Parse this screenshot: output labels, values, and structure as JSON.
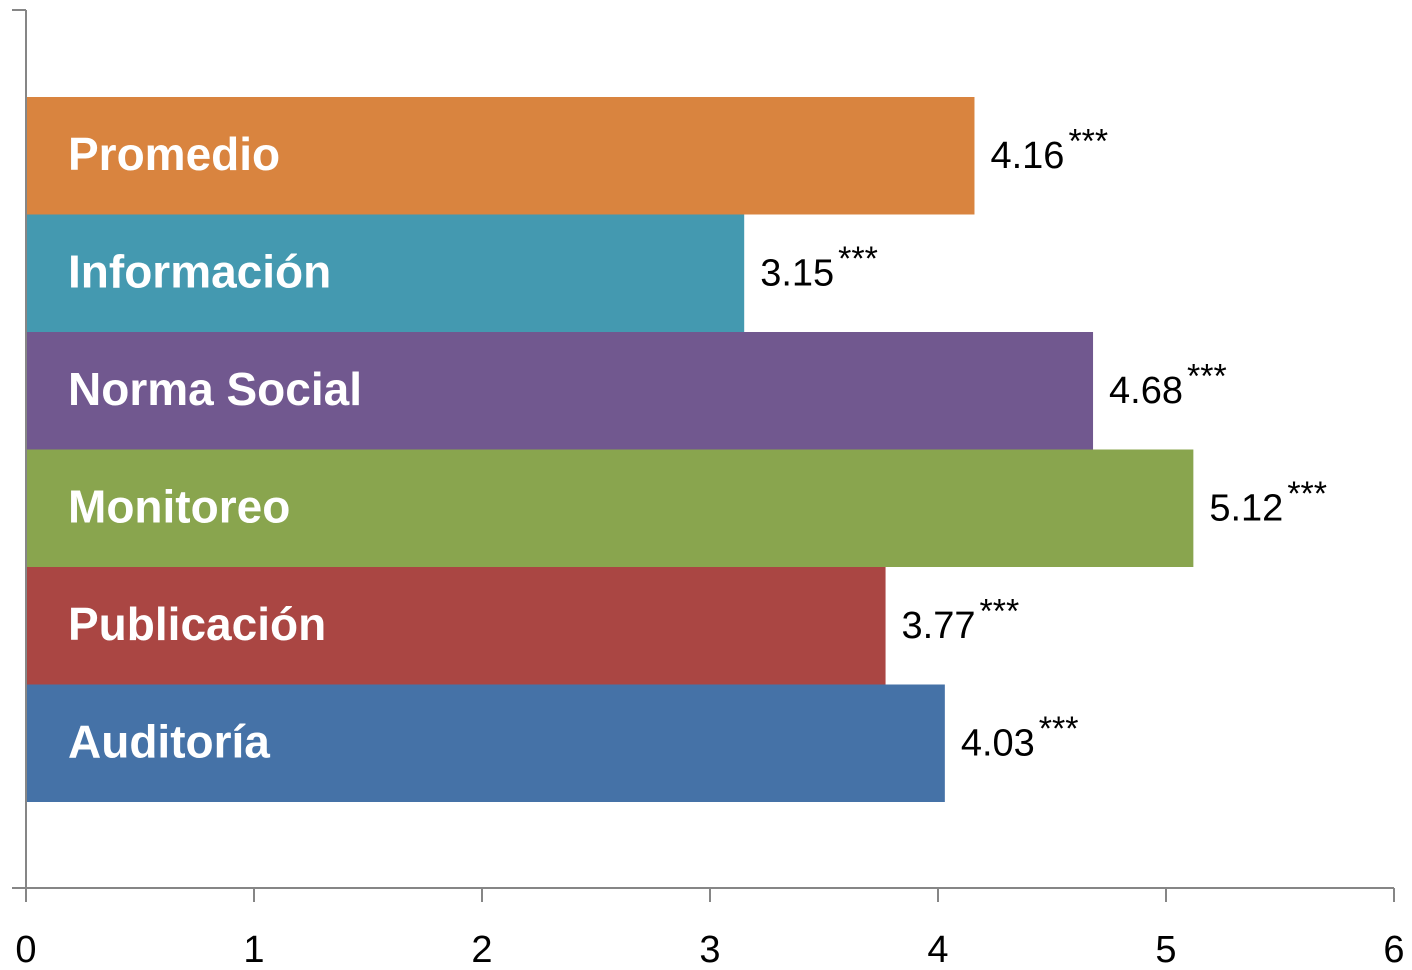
{
  "chart_data": {
    "type": "barh",
    "categories": [
      "Promedio",
      "Información",
      "Norma Social",
      "Monitoreo",
      "Publicación",
      "Auditoría"
    ],
    "values": [
      4.16,
      3.15,
      4.68,
      5.12,
      3.77,
      4.03
    ],
    "significance": [
      "***",
      "***",
      "***",
      "***",
      "***",
      "***"
    ],
    "colors": [
      "#d9843f",
      "#4499b0",
      "#71588f",
      "#89a54e",
      "#aa4643",
      "#4572a7"
    ],
    "xlim": [
      0,
      6
    ],
    "xticks": [
      0,
      1,
      2,
      3,
      4,
      5,
      6
    ],
    "grid": false
  }
}
